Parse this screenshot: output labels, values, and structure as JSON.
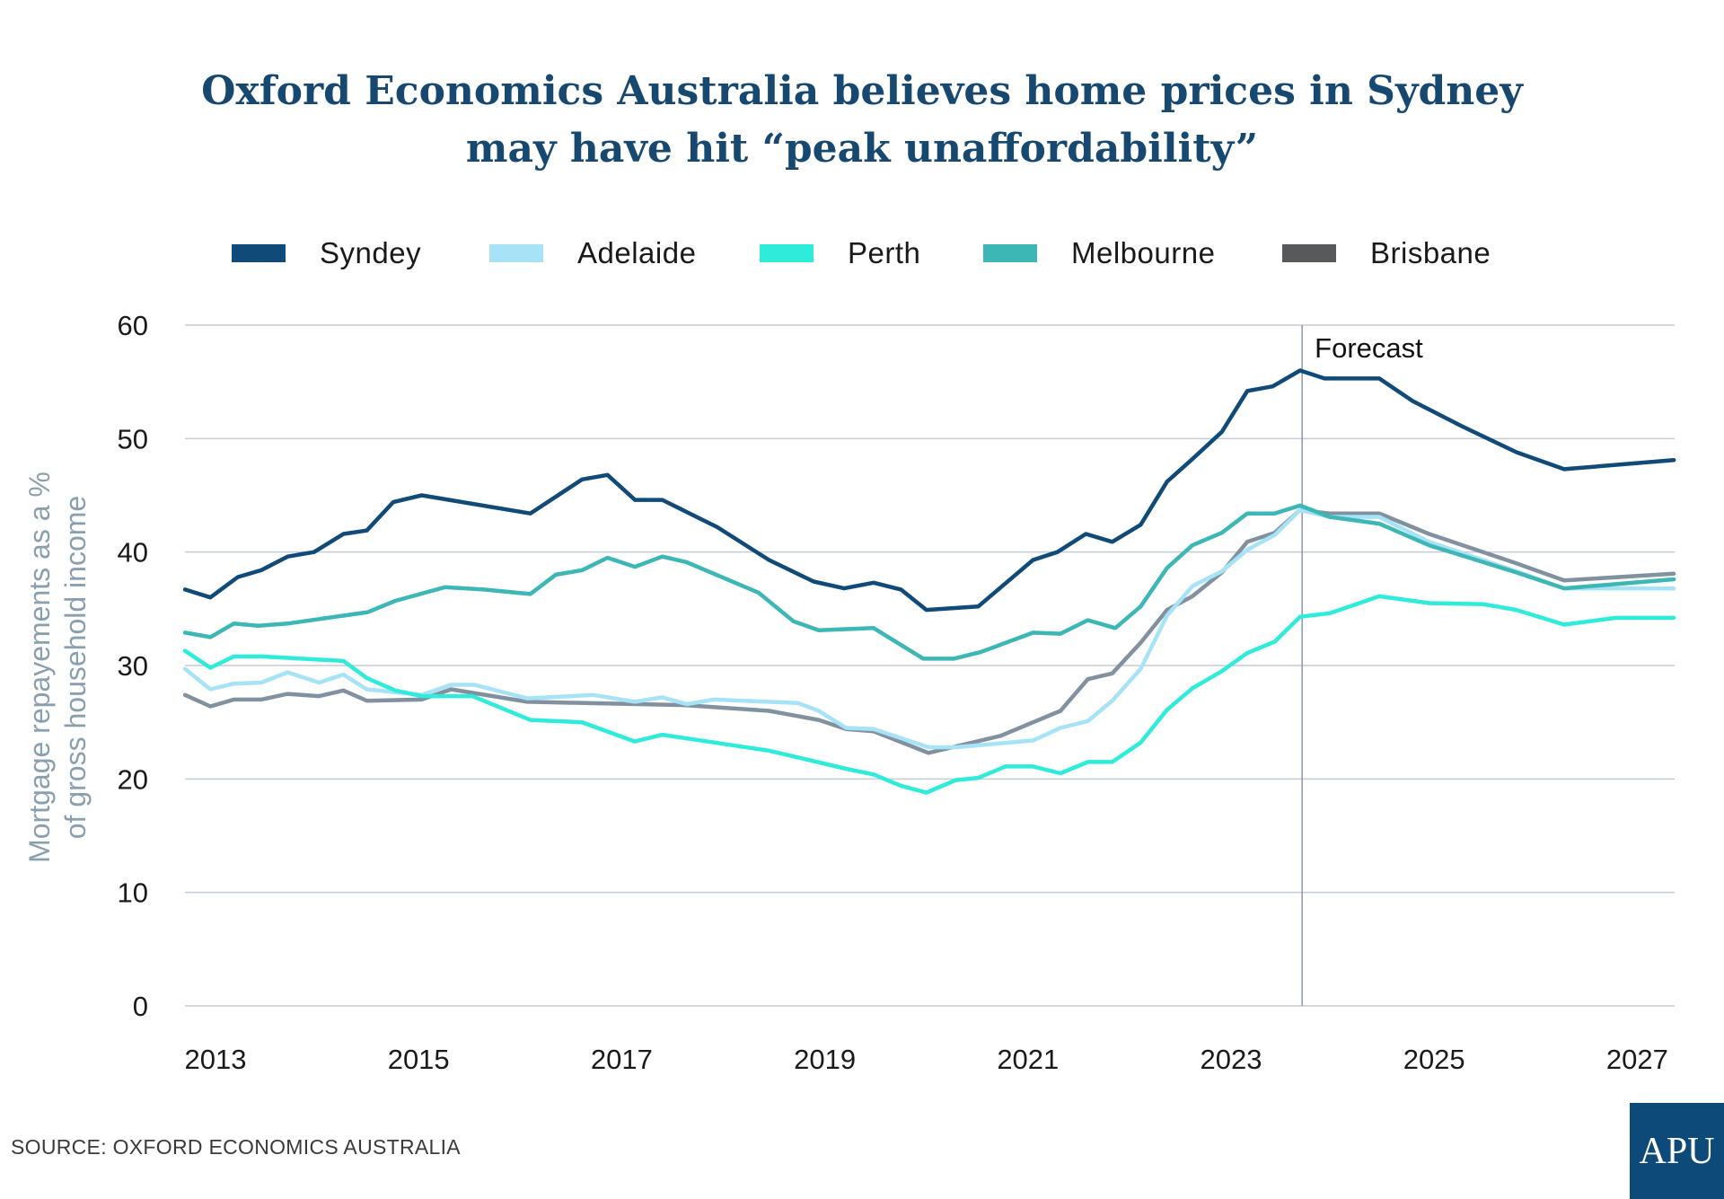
{
  "chart_data": {
    "type": "line",
    "title": "Oxford Economics Australia believes home prices in Sydney may have hit “peak unaffordability”",
    "title_lines": [
      "Oxford Economics Australia believes home prices in Sydney",
      "may have hit “peak unaffordability”"
    ],
    "xlabel": "",
    "ylabel_lines": [
      "Mortgage repayements as a %",
      "of gross household income"
    ],
    "xlim": [
      2012.7,
      2027.36
    ],
    "ylim": [
      0,
      60
    ],
    "x_ticks": [
      "2013",
      "2015",
      "2017",
      "2019",
      "2021",
      "2023",
      "2025",
      "2027"
    ],
    "y_ticks": [
      "0",
      "10",
      "20",
      "30",
      "40",
      "50",
      "60"
    ],
    "grid": "horizontal",
    "legend_position": "top",
    "annotation": {
      "label": "Forecast",
      "x": 2023.7
    },
    "source": "SOURCE: OXFORD ECONOMICS AUSTRALIA",
    "series": [
      {
        "name": "Syndey",
        "color": "#0f4a78",
        "line_color": "#0f4a78",
        "points": [
          [
            2012.7,
            36.7
          ],
          [
            2012.95,
            36.0
          ],
          [
            2013.22,
            37.8
          ],
          [
            2013.45,
            38.4
          ],
          [
            2013.71,
            39.6
          ],
          [
            2013.97,
            40.0
          ],
          [
            2014.26,
            41.6
          ],
          [
            2014.49,
            41.9
          ],
          [
            2014.75,
            44.4
          ],
          [
            2015.03,
            45.0
          ],
          [
            2016.1,
            43.4
          ],
          [
            2016.61,
            46.4
          ],
          [
            2016.86,
            46.8
          ],
          [
            2017.13,
            44.6
          ],
          [
            2017.4,
            44.6
          ],
          [
            2017.94,
            42.2
          ],
          [
            2018.45,
            39.3
          ],
          [
            2018.89,
            37.4
          ],
          [
            2019.19,
            36.8
          ],
          [
            2019.48,
            37.3
          ],
          [
            2019.75,
            36.7
          ],
          [
            2020.0,
            34.9
          ],
          [
            2020.51,
            35.2
          ],
          [
            2021.05,
            39.3
          ],
          [
            2021.29,
            40.0
          ],
          [
            2021.57,
            41.6
          ],
          [
            2021.83,
            40.9
          ],
          [
            2022.11,
            42.4
          ],
          [
            2022.37,
            46.2
          ],
          [
            2022.62,
            48.2
          ],
          [
            2022.91,
            50.6
          ],
          [
            2023.16,
            54.2
          ],
          [
            2023.41,
            54.6
          ],
          [
            2023.68,
            56.0
          ],
          [
            2023.92,
            55.3
          ],
          [
            2024.46,
            55.3
          ],
          [
            2024.79,
            53.3
          ],
          [
            2025.27,
            51.1
          ],
          [
            2025.81,
            48.8
          ],
          [
            2026.28,
            47.3
          ],
          [
            2027.36,
            48.1
          ]
        ]
      },
      {
        "name": "Adelaide",
        "color": "#a6e3f7",
        "line_color": "#a6e3f7",
        "points": [
          [
            2012.7,
            29.7
          ],
          [
            2012.95,
            27.9
          ],
          [
            2013.18,
            28.4
          ],
          [
            2013.45,
            28.5
          ],
          [
            2013.71,
            29.4
          ],
          [
            2014.02,
            28.5
          ],
          [
            2014.26,
            29.2
          ],
          [
            2014.49,
            27.9
          ],
          [
            2015.03,
            27.4
          ],
          [
            2015.32,
            28.3
          ],
          [
            2015.55,
            28.3
          ],
          [
            2016.07,
            27.1
          ],
          [
            2016.72,
            27.4
          ],
          [
            2017.13,
            26.8
          ],
          [
            2017.4,
            27.2
          ],
          [
            2017.64,
            26.6
          ],
          [
            2017.91,
            27.0
          ],
          [
            2018.73,
            26.7
          ],
          [
            2018.94,
            26.0
          ],
          [
            2019.21,
            24.5
          ],
          [
            2019.48,
            24.4
          ],
          [
            2020.02,
            22.8
          ],
          [
            2020.29,
            22.8
          ],
          [
            2021.05,
            23.4
          ],
          [
            2021.32,
            24.5
          ],
          [
            2021.59,
            25.1
          ],
          [
            2021.83,
            26.9
          ],
          [
            2022.11,
            29.7
          ],
          [
            2022.37,
            34.4
          ],
          [
            2022.62,
            37.0
          ],
          [
            2022.91,
            38.3
          ],
          [
            2023.16,
            40.2
          ],
          [
            2023.43,
            41.5
          ],
          [
            2023.68,
            43.7
          ],
          [
            2023.97,
            43.1
          ],
          [
            2024.46,
            43.1
          ],
          [
            2024.95,
            40.9
          ],
          [
            2025.81,
            38.3
          ],
          [
            2026.28,
            36.8
          ],
          [
            2027.36,
            36.8
          ]
        ]
      },
      {
        "name": "Perth",
        "color": "#2eecd9",
        "line_color": "#2eecd9",
        "points": [
          [
            2012.7,
            31.3
          ],
          [
            2012.95,
            29.8
          ],
          [
            2013.18,
            30.8
          ],
          [
            2013.45,
            30.8
          ],
          [
            2014.26,
            30.4
          ],
          [
            2014.49,
            28.9
          ],
          [
            2014.77,
            27.8
          ],
          [
            2015.03,
            27.3
          ],
          [
            2015.53,
            27.3
          ],
          [
            2016.1,
            25.2
          ],
          [
            2016.61,
            25.0
          ],
          [
            2017.13,
            23.3
          ],
          [
            2017.4,
            23.9
          ],
          [
            2018.45,
            22.5
          ],
          [
            2019.21,
            20.9
          ],
          [
            2019.48,
            20.4
          ],
          [
            2019.75,
            19.4
          ],
          [
            2020.0,
            18.8
          ],
          [
            2020.29,
            19.9
          ],
          [
            2020.51,
            20.1
          ],
          [
            2020.78,
            21.1
          ],
          [
            2021.05,
            21.1
          ],
          [
            2021.32,
            20.5
          ],
          [
            2021.59,
            21.5
          ],
          [
            2021.83,
            21.5
          ],
          [
            2022.11,
            23.2
          ],
          [
            2022.37,
            26.1
          ],
          [
            2022.62,
            28.0
          ],
          [
            2022.91,
            29.5
          ],
          [
            2023.16,
            31.1
          ],
          [
            2023.43,
            32.1
          ],
          [
            2023.68,
            34.3
          ],
          [
            2023.97,
            34.6
          ],
          [
            2024.46,
            36.1
          ],
          [
            2024.95,
            35.5
          ],
          [
            2025.49,
            35.4
          ],
          [
            2025.81,
            34.9
          ],
          [
            2026.28,
            33.6
          ],
          [
            2026.79,
            34.2
          ],
          [
            2027.36,
            34.2
          ]
        ]
      },
      {
        "name": "Melbourne",
        "color": "#3db7b5",
        "line_color": "#3db7b5",
        "points": [
          [
            2012.7,
            32.9
          ],
          [
            2012.95,
            32.5
          ],
          [
            2013.18,
            33.7
          ],
          [
            2013.42,
            33.5
          ],
          [
            2013.71,
            33.7
          ],
          [
            2014.5,
            34.7
          ],
          [
            2014.77,
            35.7
          ],
          [
            2015.26,
            36.9
          ],
          [
            2015.64,
            36.7
          ],
          [
            2016.1,
            36.3
          ],
          [
            2016.35,
            38.0
          ],
          [
            2016.61,
            38.4
          ],
          [
            2016.86,
            39.5
          ],
          [
            2017.13,
            38.7
          ],
          [
            2017.4,
            39.6
          ],
          [
            2017.64,
            39.1
          ],
          [
            2018.35,
            36.4
          ],
          [
            2018.69,
            33.9
          ],
          [
            2018.94,
            33.1
          ],
          [
            2019.48,
            33.3
          ],
          [
            2019.97,
            30.6
          ],
          [
            2020.27,
            30.6
          ],
          [
            2020.54,
            31.2
          ],
          [
            2021.05,
            32.9
          ],
          [
            2021.32,
            32.8
          ],
          [
            2021.59,
            34.0
          ],
          [
            2021.86,
            33.3
          ],
          [
            2022.11,
            35.2
          ],
          [
            2022.37,
            38.6
          ],
          [
            2022.62,
            40.6
          ],
          [
            2022.91,
            41.7
          ],
          [
            2023.16,
            43.4
          ],
          [
            2023.43,
            43.4
          ],
          [
            2023.68,
            44.1
          ],
          [
            2023.97,
            43.1
          ],
          [
            2024.46,
            42.5
          ],
          [
            2024.95,
            40.6
          ],
          [
            2025.81,
            38.2
          ],
          [
            2026.28,
            36.8
          ],
          [
            2027.36,
            37.6
          ]
        ]
      },
      {
        "name": "Brisbane",
        "color": "#58595b",
        "line_color": "#8291a0",
        "points": [
          [
            2012.7,
            27.4
          ],
          [
            2012.95,
            26.4
          ],
          [
            2013.18,
            27.0
          ],
          [
            2013.45,
            27.0
          ],
          [
            2013.71,
            27.5
          ],
          [
            2014.02,
            27.3
          ],
          [
            2014.26,
            27.8
          ],
          [
            2014.49,
            26.9
          ],
          [
            2015.03,
            27.0
          ],
          [
            2015.32,
            27.9
          ],
          [
            2016.07,
            26.8
          ],
          [
            2017.64,
            26.5
          ],
          [
            2018.45,
            26.0
          ],
          [
            2018.94,
            25.2
          ],
          [
            2019.21,
            24.4
          ],
          [
            2019.48,
            24.2
          ],
          [
            2020.02,
            22.3
          ],
          [
            2020.73,
            23.8
          ],
          [
            2021.32,
            26.0
          ],
          [
            2021.59,
            28.8
          ],
          [
            2021.83,
            29.3
          ],
          [
            2022.11,
            32.0
          ],
          [
            2022.37,
            34.9
          ],
          [
            2022.62,
            36.1
          ],
          [
            2022.91,
            38.2
          ],
          [
            2023.16,
            40.9
          ],
          [
            2023.43,
            41.7
          ],
          [
            2023.68,
            43.7
          ],
          [
            2023.97,
            43.4
          ],
          [
            2024.46,
            43.4
          ],
          [
            2024.95,
            41.6
          ],
          [
            2025.81,
            39.0
          ],
          [
            2026.28,
            37.5
          ],
          [
            2027.36,
            38.1
          ]
        ]
      }
    ]
  },
  "logo_text": "APU"
}
